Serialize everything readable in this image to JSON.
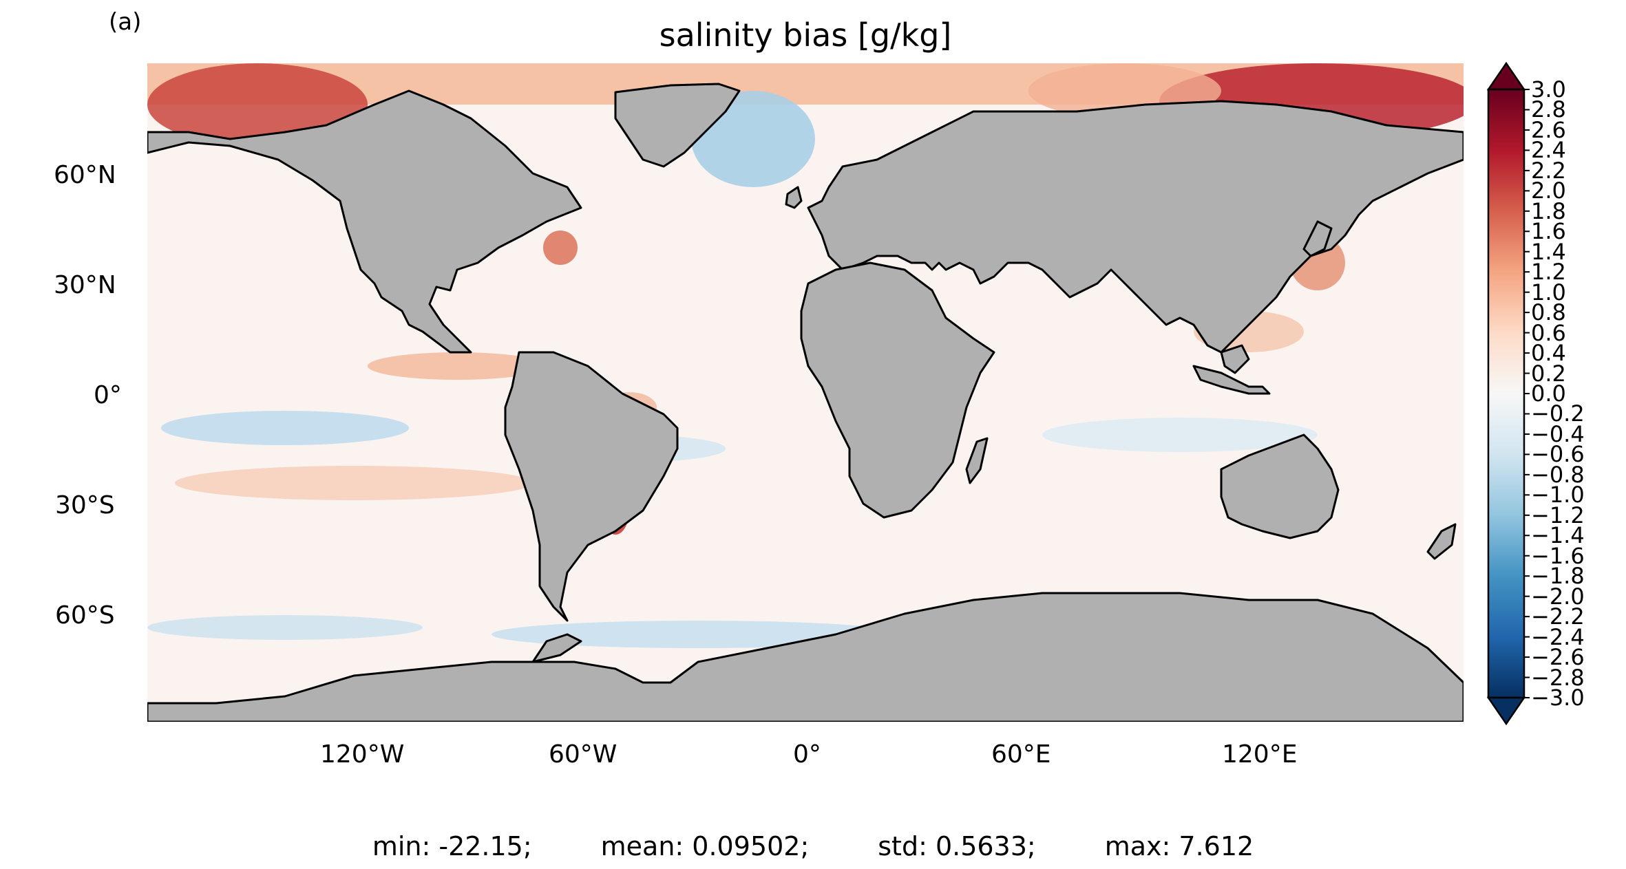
{
  "panel_label": "(a)",
  "title": "salinity bias [g/kg]",
  "lat_ticks": [
    "60°N",
    "30°N",
    "0°",
    "30°S",
    "60°S"
  ],
  "lon_ticks": [
    "120°W",
    "60°W",
    "0°",
    "60°E",
    "120°E"
  ],
  "colorbar": {
    "ticks": [
      "3.0",
      "2.8",
      "2.6",
      "2.4",
      "2.2",
      "2.0",
      "1.8",
      "1.6",
      "1.4",
      "1.2",
      "1.0",
      "0.8",
      "0.6",
      "0.4",
      "0.2",
      "0.0",
      "−0.2",
      "−0.4",
      "−0.6",
      "−0.8",
      "−1.0",
      "−1.2",
      "−1.4",
      "−1.6",
      "−1.8",
      "−2.0",
      "−2.2",
      "−2.4",
      "−2.6",
      "−2.8",
      "−3.0"
    ],
    "min": -3.0,
    "max": 3.0,
    "colors": [
      "#053061",
      "#2166ac",
      "#4393c3",
      "#92c5de",
      "#d1e5f0",
      "#f7f7f7",
      "#fddbc7",
      "#f4a582",
      "#d6604d",
      "#b2182b",
      "#67001f"
    ]
  },
  "land_color": "#b0b0b0",
  "stats": {
    "min": "min: -22.15;",
    "mean": "mean: 0.09502;",
    "std": "std: 0.5633;",
    "max": "max: 7.612"
  }
}
